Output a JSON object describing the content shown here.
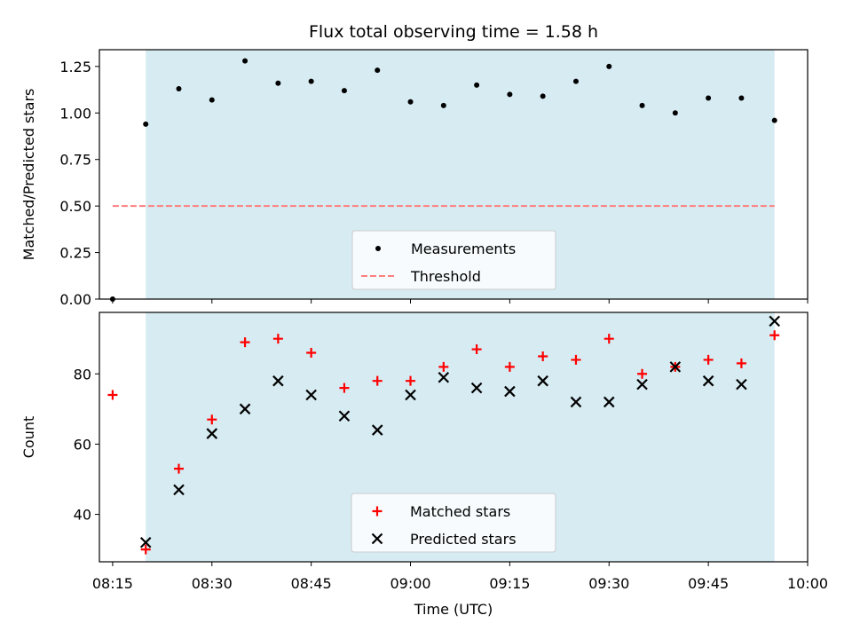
{
  "chart_data": [
    {
      "type": "scatter",
      "title": "Flux total observing time = 1.58 h",
      "xlabel": "",
      "ylabel": "Matched/Predicted stars",
      "xlim": [
        "08:13",
        "10:00"
      ],
      "ylim": [
        0,
        1.34
      ],
      "yticks": [
        "0.00",
        "0.25",
        "0.50",
        "0.75",
        "1.00",
        "1.25"
      ],
      "shaded_region": [
        "08:20",
        "09:55"
      ],
      "shade_color": "#add8e6",
      "legend_position": "bottom-center",
      "series": [
        {
          "name": "Measurements",
          "marker": "dot",
          "color": "#000000",
          "x": [
            "08:15",
            "08:20",
            "08:25",
            "08:30",
            "08:35",
            "08:40",
            "08:45",
            "08:50",
            "08:55",
            "09:00",
            "09:05",
            "09:10",
            "09:15",
            "09:20",
            "09:25",
            "09:30",
            "09:35",
            "09:40",
            "09:45",
            "09:50",
            "09:55"
          ],
          "y": [
            0.0,
            0.94,
            1.13,
            1.07,
            1.28,
            1.16,
            1.17,
            1.12,
            1.23,
            1.06,
            1.04,
            1.15,
            1.1,
            1.09,
            1.17,
            1.25,
            1.04,
            1.0,
            1.08,
            1.08,
            0.96
          ]
        },
        {
          "name": "Threshold",
          "marker": "dashed-line",
          "color": "#ff7f7f",
          "x": [
            "08:15",
            "09:55"
          ],
          "y": [
            0.5,
            0.5
          ]
        }
      ]
    },
    {
      "type": "scatter",
      "title": "",
      "xlabel": "Time (UTC)",
      "ylabel": "Count",
      "xlim": [
        "08:13",
        "10:00"
      ],
      "ylim": [
        26.5,
        97.5
      ],
      "yticks": [
        "40",
        "60",
        "80"
      ],
      "xticks": [
        "08:15",
        "08:30",
        "08:45",
        "09:00",
        "09:15",
        "09:30",
        "09:45",
        "10:00"
      ],
      "shaded_region": [
        "08:20",
        "09:55"
      ],
      "shade_color": "#add8e6",
      "legend_position": "bottom-center",
      "series": [
        {
          "name": "Matched stars",
          "marker": "plus",
          "color": "#ff0000",
          "x": [
            "08:15",
            "08:20",
            "08:25",
            "08:30",
            "08:35",
            "08:40",
            "08:45",
            "08:50",
            "08:55",
            "09:00",
            "09:05",
            "09:10",
            "09:15",
            "09:20",
            "09:25",
            "09:30",
            "09:35",
            "09:40",
            "09:45",
            "09:50",
            "09:55"
          ],
          "y": [
            74,
            30,
            53,
            67,
            89,
            90,
            86,
            76,
            78,
            78,
            82,
            87,
            82,
            85,
            84,
            90,
            80,
            82,
            84,
            83,
            91
          ]
        },
        {
          "name": "Predicted stars",
          "marker": "cross",
          "color": "#000000",
          "x": [
            "08:20",
            "08:25",
            "08:30",
            "08:35",
            "08:40",
            "08:45",
            "08:50",
            "08:55",
            "09:00",
            "09:05",
            "09:10",
            "09:15",
            "09:20",
            "09:25",
            "09:30",
            "09:35",
            "09:40",
            "09:45",
            "09:50",
            "09:55"
          ],
          "y": [
            32,
            47,
            63,
            70,
            78,
            74,
            68,
            64,
            74,
            79,
            76,
            75,
            78,
            72,
            72,
            77,
            82,
            78,
            77,
            95
          ]
        }
      ]
    }
  ]
}
